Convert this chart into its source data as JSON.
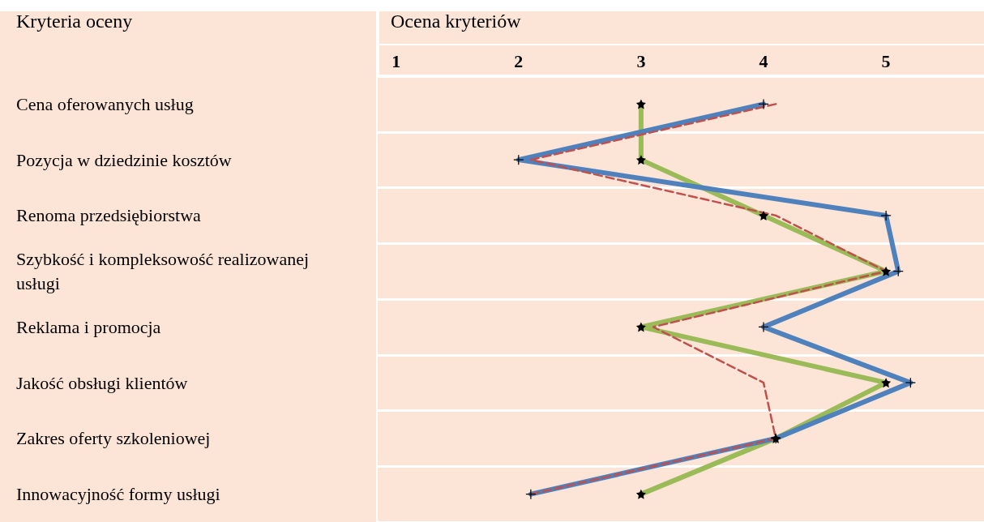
{
  "chart_data": {
    "type": "line",
    "xlabel": "Ocena kryteriów",
    "ylabel": "Kryteria oceny",
    "orientation": "horizontal",
    "categories": [
      "Cena oferowanych usług",
      "Pozycja w dziedzinie kosztów",
      "Renoma przedsiębiorstwa",
      "Szybkość i kompleksowość realizowanej usługi",
      "Reklama i promocja",
      "Jakość obsługi klientów",
      "Zakres oferty szkoleniowej",
      "Innowacyjność formy usługi"
    ],
    "series": [
      {
        "color": "#9bbb59",
        "values": [
          3,
          3,
          4,
          5,
          3,
          5,
          4.1,
          3
        ],
        "marker": "star",
        "line_style": "solid"
      },
      {
        "color": "#4f81bd",
        "values": [
          4,
          2,
          5,
          5.1,
          4,
          5.2,
          4.1,
          2.1
        ],
        "marker": "cross",
        "line_style": "solid"
      },
      {
        "color": "#c0504d",
        "values": [
          4.1,
          2.1,
          4.1,
          5,
          3.1,
          4,
          4.1,
          2.1
        ],
        "marker": "none",
        "line_style": "dashed"
      }
    ],
    "xlim": [
      0.85,
      5.8
    ],
    "xticks": [
      1,
      2,
      3,
      4,
      5
    ],
    "grid": "y"
  }
}
